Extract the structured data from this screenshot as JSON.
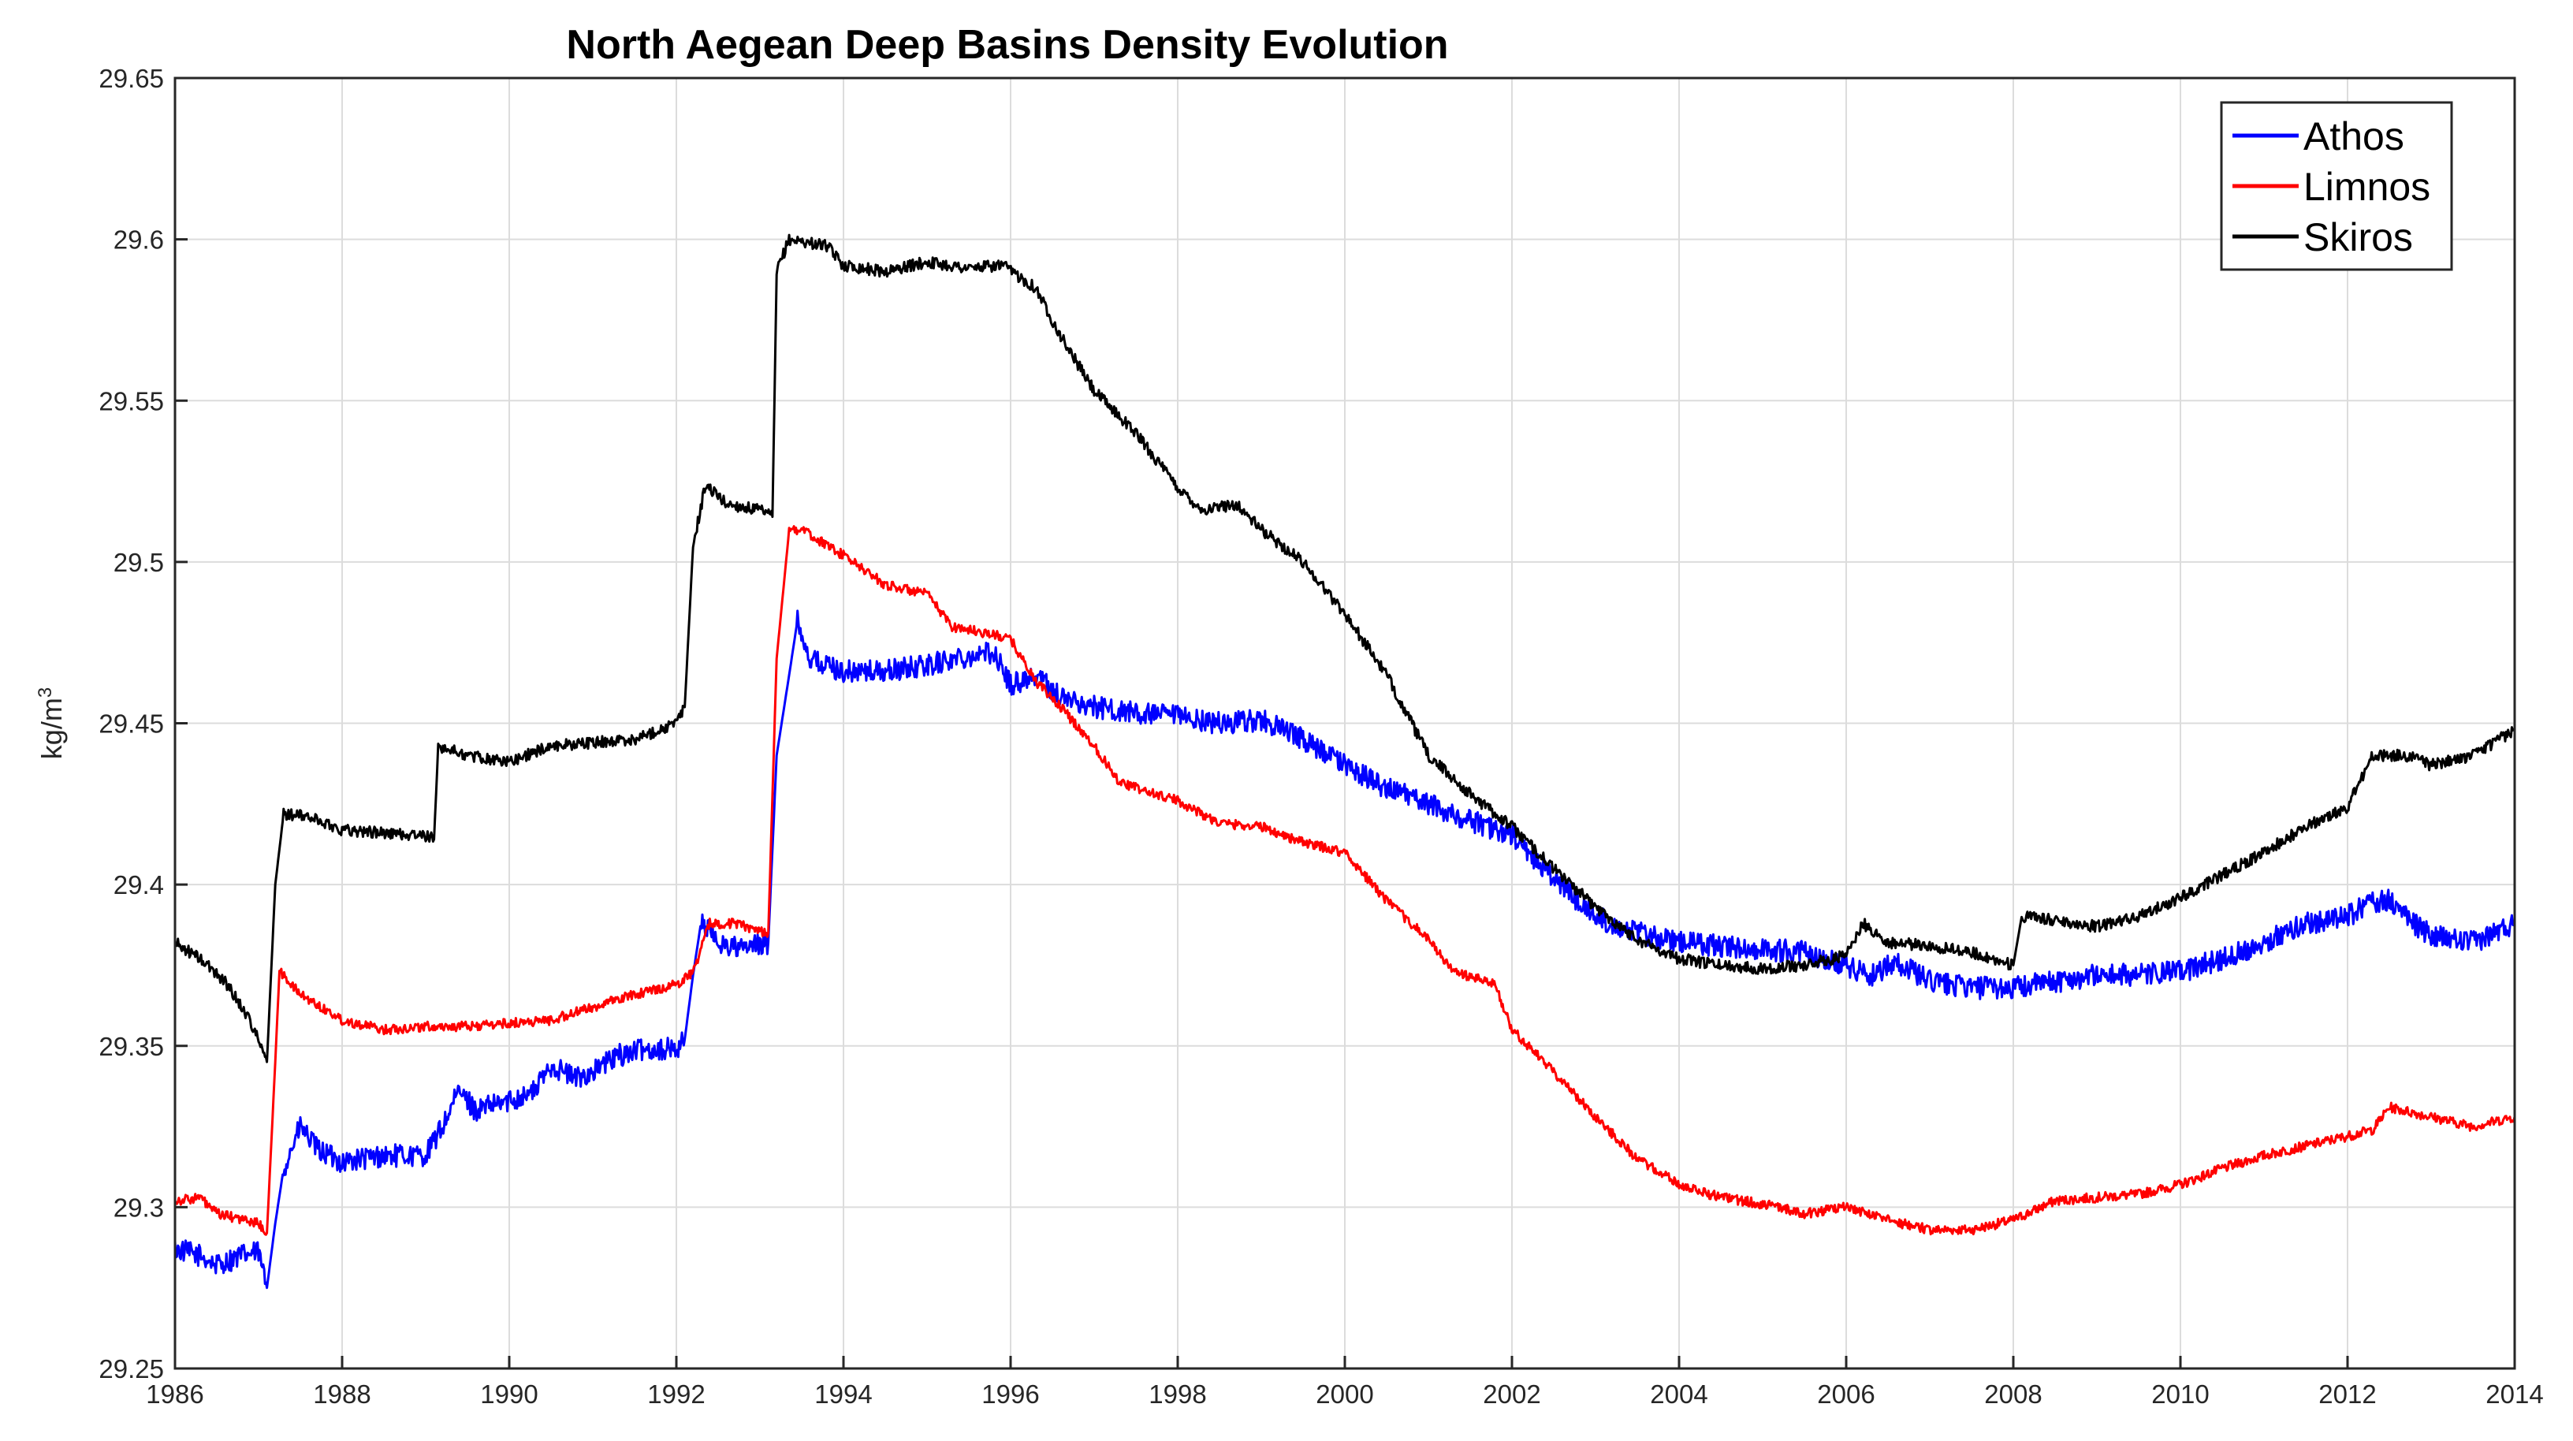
{
  "chart_data": {
    "type": "line",
    "title": "North Aegean Deep Basins Density Evolution",
    "xlabel": "",
    "ylabel": "kg/m",
    "ylabel_superscript": "3",
    "xlim": [
      1986,
      2014
    ],
    "ylim": [
      29.25,
      29.65
    ],
    "xticks": [
      "1986",
      "1988",
      "1990",
      "1992",
      "1994",
      "1996",
      "1998",
      "2000",
      "2002",
      "2004",
      "2006",
      "2008",
      "2010",
      "2012",
      "2014"
    ],
    "yticks": [
      "29.25",
      "29.3",
      "29.35",
      "29.4",
      "29.45",
      "29.5",
      "29.55",
      "29.6",
      "29.65"
    ],
    "grid": true,
    "legend_position": "top-right",
    "series": [
      {
        "name": "Athos",
        "color": "#0000ff",
        "noise": 0.0035,
        "points": [
          [
            1986.0,
            29.287
          ],
          [
            1986.3,
            29.285
          ],
          [
            1986.5,
            29.282
          ],
          [
            1986.8,
            29.285
          ],
          [
            1987.0,
            29.286
          ],
          [
            1987.1,
            29.275
          ],
          [
            1987.2,
            29.295
          ],
          [
            1987.3,
            29.312
          ],
          [
            1987.5,
            29.325
          ],
          [
            1987.7,
            29.318
          ],
          [
            1988.0,
            29.314
          ],
          [
            1988.5,
            29.316
          ],
          [
            1989.0,
            29.316
          ],
          [
            1989.2,
            29.325
          ],
          [
            1989.4,
            29.336
          ],
          [
            1989.6,
            29.33
          ],
          [
            1990.0,
            29.333
          ],
          [
            1990.3,
            29.336
          ],
          [
            1990.5,
            29.344
          ],
          [
            1990.8,
            29.34
          ],
          [
            1991.0,
            29.342
          ],
          [
            1991.3,
            29.347
          ],
          [
            1991.6,
            29.349
          ],
          [
            1992.0,
            29.349
          ],
          [
            1992.1,
            29.352
          ],
          [
            1992.2,
            29.372
          ],
          [
            1992.3,
            29.389
          ],
          [
            1992.5,
            29.382
          ],
          [
            1992.8,
            29.38
          ],
          [
            1993.1,
            29.382
          ],
          [
            1993.2,
            29.44
          ],
          [
            1993.35,
            29.465
          ],
          [
            1993.45,
            29.482
          ],
          [
            1993.6,
            29.47
          ],
          [
            1994.0,
            29.466
          ],
          [
            1994.5,
            29.466
          ],
          [
            1995.0,
            29.468
          ],
          [
            1995.5,
            29.471
          ],
          [
            1995.8,
            29.472
          ],
          [
            1996.0,
            29.462
          ],
          [
            1996.3,
            29.465
          ],
          [
            1996.6,
            29.458
          ],
          [
            1997.0,
            29.455
          ],
          [
            1997.5,
            29.453
          ],
          [
            1998.0,
            29.452
          ],
          [
            1998.5,
            29.45
          ],
          [
            1999.0,
            29.451
          ],
          [
            1999.5,
            29.445
          ],
          [
            2000.0,
            29.437
          ],
          [
            2000.5,
            29.43
          ],
          [
            2001.0,
            29.425
          ],
          [
            2001.5,
            29.42
          ],
          [
            2002.0,
            29.415
          ],
          [
            2002.5,
            29.402
          ],
          [
            2003.0,
            29.39
          ],
          [
            2003.5,
            29.385
          ],
          [
            2004.0,
            29.382
          ],
          [
            2004.5,
            29.381
          ],
          [
            2005.0,
            29.38
          ],
          [
            2005.5,
            29.379
          ],
          [
            2006.0,
            29.375
          ],
          [
            2006.3,
            29.372
          ],
          [
            2006.6,
            29.376
          ],
          [
            2007.0,
            29.37
          ],
          [
            2007.5,
            29.368
          ],
          [
            2008.0,
            29.368
          ],
          [
            2008.5,
            29.37
          ],
          [
            2009.0,
            29.372
          ],
          [
            2009.5,
            29.372
          ],
          [
            2010.0,
            29.373
          ],
          [
            2010.5,
            29.377
          ],
          [
            2011.0,
            29.382
          ],
          [
            2011.5,
            29.388
          ],
          [
            2012.0,
            29.39
          ],
          [
            2012.3,
            29.395
          ],
          [
            2012.5,
            29.395
          ],
          [
            2012.8,
            29.388
          ],
          [
            2013.0,
            29.384
          ],
          [
            2013.5,
            29.382
          ],
          [
            2014.0,
            29.388
          ]
        ]
      },
      {
        "name": "Limnos",
        "color": "#ff0000",
        "noise": 0.0015,
        "points": [
          [
            1986.0,
            29.302
          ],
          [
            1986.3,
            29.303
          ],
          [
            1986.5,
            29.298
          ],
          [
            1987.0,
            29.295
          ],
          [
            1987.1,
            29.292
          ],
          [
            1987.2,
            29.345
          ],
          [
            1987.25,
            29.373
          ],
          [
            1987.5,
            29.366
          ],
          [
            1988.0,
            29.358
          ],
          [
            1988.5,
            29.355
          ],
          [
            1989.0,
            29.356
          ],
          [
            1989.5,
            29.356
          ],
          [
            1990.0,
            29.357
          ],
          [
            1990.5,
            29.358
          ],
          [
            1991.0,
            29.362
          ],
          [
            1991.5,
            29.366
          ],
          [
            1992.0,
            29.369
          ],
          [
            1992.2,
            29.373
          ],
          [
            1992.4,
            29.388
          ],
          [
            1992.7,
            29.388
          ],
          [
            1993.1,
            29.385
          ],
          [
            1993.2,
            29.47
          ],
          [
            1993.35,
            29.51
          ],
          [
            1993.5,
            29.51
          ],
          [
            1994.0,
            29.502
          ],
          [
            1994.5,
            29.493
          ],
          [
            1995.0,
            29.49
          ],
          [
            1995.3,
            29.48
          ],
          [
            1995.7,
            29.478
          ],
          [
            1996.0,
            29.476
          ],
          [
            1996.3,
            29.463
          ],
          [
            1996.6,
            29.455
          ],
          [
            1997.0,
            29.443
          ],
          [
            1997.3,
            29.432
          ],
          [
            1997.6,
            29.429
          ],
          [
            1998.0,
            29.426
          ],
          [
            1998.5,
            29.419
          ],
          [
            1999.0,
            29.418
          ],
          [
            1999.5,
            29.413
          ],
          [
            2000.0,
            29.41
          ],
          [
            2000.5,
            29.395
          ],
          [
            2001.0,
            29.383
          ],
          [
            2001.3,
            29.373
          ],
          [
            2001.8,
            29.369
          ],
          [
            2002.0,
            29.355
          ],
          [
            2002.5,
            29.342
          ],
          [
            2003.0,
            29.328
          ],
          [
            2003.5,
            29.315
          ],
          [
            2004.0,
            29.307
          ],
          [
            2004.5,
            29.303
          ],
          [
            2005.0,
            29.301
          ],
          [
            2005.5,
            29.298
          ],
          [
            2006.0,
            29.3
          ],
          [
            2006.5,
            29.296
          ],
          [
            2007.0,
            29.293
          ],
          [
            2007.5,
            29.293
          ],
          [
            2008.0,
            29.296
          ],
          [
            2008.5,
            29.302
          ],
          [
            2009.0,
            29.303
          ],
          [
            2009.5,
            29.304
          ],
          [
            2010.0,
            29.307
          ],
          [
            2010.5,
            29.312
          ],
          [
            2011.0,
            29.316
          ],
          [
            2011.5,
            29.319
          ],
          [
            2012.0,
            29.322
          ],
          [
            2012.3,
            29.324
          ],
          [
            2012.5,
            29.331
          ],
          [
            2013.0,
            29.328
          ],
          [
            2013.5,
            29.325
          ],
          [
            2014.0,
            29.328
          ]
        ]
      },
      {
        "name": "Skiros",
        "color": "#000000",
        "noise": 0.0018,
        "points": [
          [
            1986.0,
            29.382
          ],
          [
            1986.3,
            29.377
          ],
          [
            1986.6,
            29.37
          ],
          [
            1986.9,
            29.358
          ],
          [
            1987.1,
            29.345
          ],
          [
            1987.2,
            29.4
          ],
          [
            1987.3,
            29.422
          ],
          [
            1987.6,
            29.421
          ],
          [
            1988.0,
            29.417
          ],
          [
            1988.5,
            29.416
          ],
          [
            1989.0,
            29.415
          ],
          [
            1989.1,
            29.414
          ],
          [
            1989.15,
            29.443
          ],
          [
            1989.5,
            29.44
          ],
          [
            1990.0,
            29.438
          ],
          [
            1990.5,
            29.443
          ],
          [
            1991.0,
            29.444
          ],
          [
            1991.5,
            29.445
          ],
          [
            1992.0,
            29.45
          ],
          [
            1992.1,
            29.455
          ],
          [
            1992.2,
            29.505
          ],
          [
            1992.35,
            29.524
          ],
          [
            1992.6,
            29.518
          ],
          [
            1993.0,
            29.516
          ],
          [
            1993.15,
            29.514
          ],
          [
            1993.2,
            29.59
          ],
          [
            1993.35,
            29.6
          ],
          [
            1993.8,
            29.598
          ],
          [
            1994.0,
            29.592
          ],
          [
            1994.5,
            29.59
          ],
          [
            1995.0,
            29.593
          ],
          [
            1995.5,
            29.591
          ],
          [
            1995.9,
            29.592
          ],
          [
            1996.3,
            29.585
          ],
          [
            1996.6,
            29.57
          ],
          [
            1997.0,
            29.553
          ],
          [
            1997.5,
            29.54
          ],
          [
            1998.0,
            29.523
          ],
          [
            1998.3,
            29.516
          ],
          [
            1998.7,
            29.518
          ],
          [
            1999.0,
            29.51
          ],
          [
            1999.5,
            29.5
          ],
          [
            2000.0,
            29.484
          ],
          [
            2000.5,
            29.465
          ],
          [
            2001.0,
            29.44
          ],
          [
            2001.5,
            29.428
          ],
          [
            2002.0,
            29.418
          ],
          [
            2002.5,
            29.405
          ],
          [
            2003.0,
            29.393
          ],
          [
            2003.5,
            29.383
          ],
          [
            2004.0,
            29.377
          ],
          [
            2004.5,
            29.375
          ],
          [
            2005.0,
            29.374
          ],
          [
            2005.5,
            29.375
          ],
          [
            2006.0,
            29.378
          ],
          [
            2006.2,
            29.388
          ],
          [
            2006.5,
            29.382
          ],
          [
            2007.0,
            29.381
          ],
          [
            2007.5,
            29.379
          ],
          [
            2008.0,
            29.375
          ],
          [
            2008.1,
            29.39
          ],
          [
            2008.5,
            29.389
          ],
          [
            2009.0,
            29.387
          ],
          [
            2009.5,
            29.39
          ],
          [
            2010.0,
            29.396
          ],
          [
            2010.5,
            29.403
          ],
          [
            2011.0,
            29.41
          ],
          [
            2011.5,
            29.418
          ],
          [
            2012.0,
            29.424
          ],
          [
            2012.3,
            29.44
          ],
          [
            2012.7,
            29.44
          ],
          [
            2013.0,
            29.437
          ],
          [
            2013.5,
            29.44
          ],
          [
            2014.0,
            29.448
          ]
        ]
      }
    ]
  }
}
